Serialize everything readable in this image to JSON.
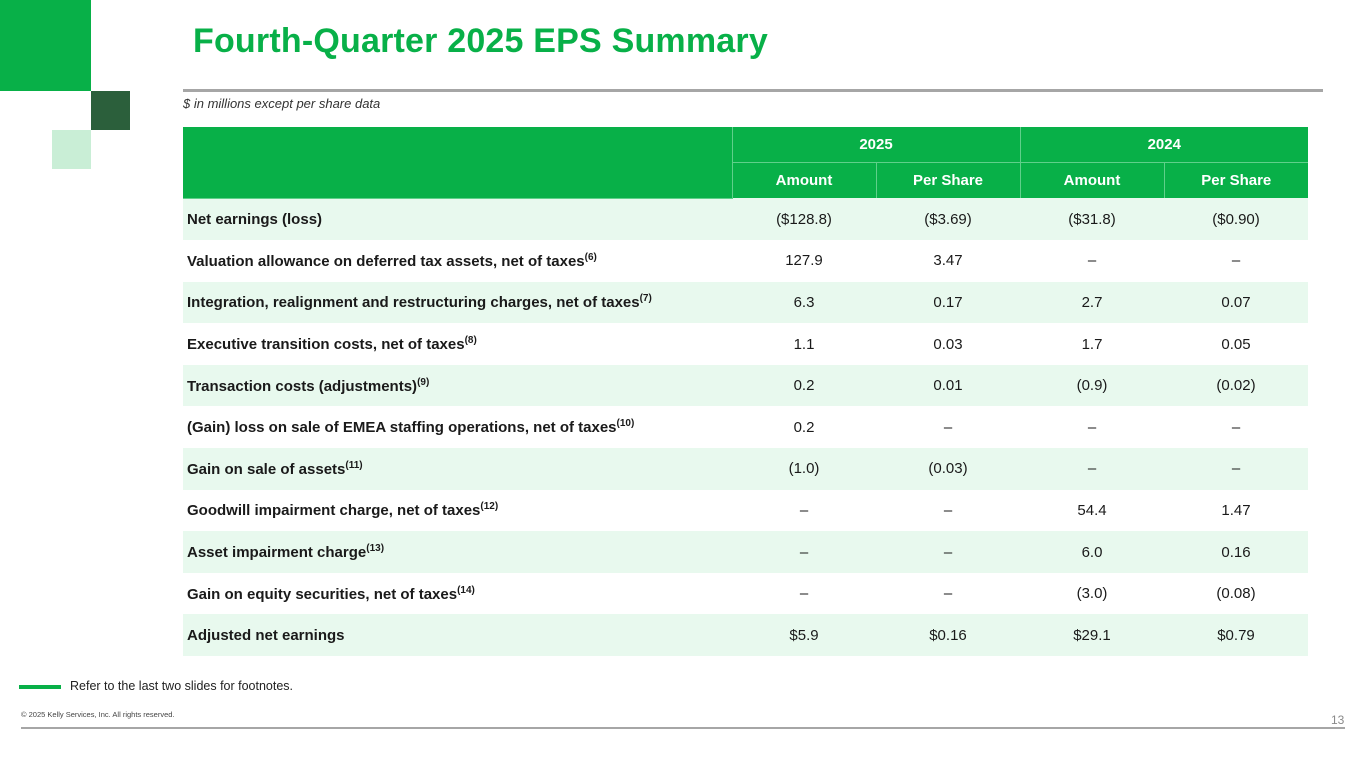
{
  "slide": {
    "title": "Fourth-Quarter 2025 EPS Summary",
    "units_note": "$ in millions except per share data",
    "footnote_ref": "Refer to the last two slides for footnotes.",
    "copyright": "© 2025 Kelly Services, Inc. All rights reserved.",
    "page_number": "13"
  },
  "colors": {
    "brand_green": "#08b048",
    "dark_green": "#2b5f3b",
    "light_green": "#c9eed6",
    "row_tint": "#e8f9ee"
  },
  "table": {
    "years": [
      "2025",
      "2024"
    ],
    "subheaders": [
      "Amount",
      "Per Share",
      "Amount",
      "Per Share"
    ],
    "rows": [
      {
        "label": "Net earnings (loss)",
        "note": "",
        "values": [
          "($128.8)",
          "($3.69)",
          "($31.8)",
          "($0.90)"
        ]
      },
      {
        "label": "Valuation allowance on deferred tax assets, net of taxes",
        "note": "(6)",
        "values": [
          "127.9",
          "3.47",
          "–",
          "–"
        ]
      },
      {
        "label": "Integration, realignment and restructuring charges, net of taxes",
        "note": "(7)",
        "values": [
          "6.3",
          "0.17",
          "2.7",
          "0.07"
        ]
      },
      {
        "label": "Executive transition costs, net of taxes",
        "note": "(8)",
        "values": [
          "1.1",
          "0.03",
          "1.7",
          "0.05"
        ]
      },
      {
        "label": "Transaction costs (adjustments)",
        "note": "(9)",
        "values": [
          "0.2",
          "0.01",
          "(0.9)",
          "(0.02)"
        ]
      },
      {
        "label": "(Gain) loss on sale of EMEA staffing operations, net of taxes",
        "note": "(10)",
        "values": [
          "0.2",
          "–",
          "–",
          "–"
        ]
      },
      {
        "label": "Gain on sale of assets",
        "note": "(11)",
        "values": [
          "(1.0)",
          "(0.03)",
          "–",
          "–"
        ]
      },
      {
        "label": "Goodwill impairment charge, net of taxes",
        "note": "(12)",
        "values": [
          "–",
          "–",
          "54.4",
          "1.47"
        ]
      },
      {
        "label": "Asset impairment charge",
        "note": "(13)",
        "values": [
          "–",
          "–",
          "6.0",
          "0.16"
        ]
      },
      {
        "label": "Gain on equity securities, net of taxes",
        "note": "(14)",
        "values": [
          "–",
          "–",
          "(3.0)",
          "(0.08)"
        ]
      },
      {
        "label": "Adjusted net earnings",
        "note": "",
        "values": [
          "$5.9",
          "$0.16",
          "$29.1",
          "$0.79"
        ]
      }
    ]
  }
}
